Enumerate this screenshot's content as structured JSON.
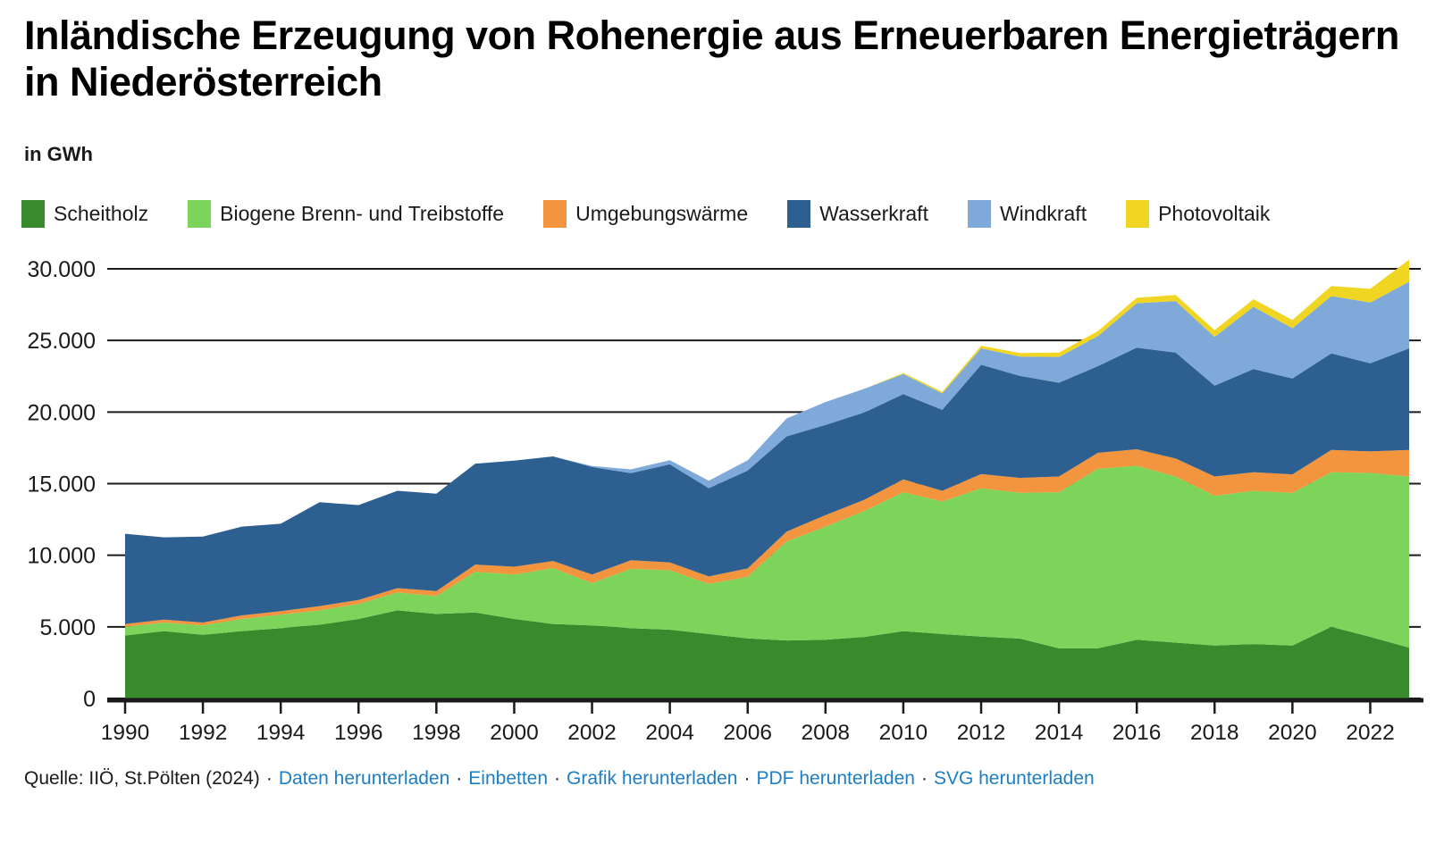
{
  "header": {
    "title": "Inländische Erzeugung von Rohenergie aus Erneuerbaren Energieträgern in Niederösterreich",
    "unit_label": "in GWh"
  },
  "chart_data": {
    "type": "area",
    "stacked": true,
    "title": "Inländische Erzeugung von Rohenergie aus Erneuerbaren Energieträgern in Niederösterreich",
    "ylabel": "in GWh",
    "x": [
      1990,
      1991,
      1992,
      1993,
      1994,
      1995,
      1996,
      1997,
      1998,
      1999,
      2000,
      2001,
      2002,
      2003,
      2004,
      2005,
      2006,
      2007,
      2008,
      2009,
      2010,
      2011,
      2012,
      2013,
      2014,
      2015,
      2016,
      2017,
      2018,
      2019,
      2020,
      2021,
      2022,
      2023
    ],
    "series": [
      {
        "name": "Scheitholz",
        "color": "#378b2d",
        "values": [
          4400,
          4700,
          4450,
          4700,
          4900,
          5150,
          5550,
          6150,
          5900,
          6000,
          5550,
          5200,
          5100,
          4900,
          4800,
          4500,
          4200,
          4050,
          4100,
          4300,
          4700,
          4500,
          4320,
          4180,
          3500,
          3500,
          4100,
          3900,
          3700,
          3800,
          3700,
          5000,
          4300,
          3550
        ]
      },
      {
        "name": "Biogene Brenn- und Treibstoffe",
        "color": "#7dd45a",
        "values": [
          600,
          600,
          650,
          850,
          950,
          1000,
          1050,
          1250,
          1250,
          2850,
          3100,
          3900,
          2950,
          4150,
          4150,
          3500,
          4300,
          6900,
          7900,
          8800,
          9700,
          9250,
          10350,
          10180,
          10900,
          12550,
          12150,
          11600,
          10450,
          10700,
          10650,
          10800,
          11450,
          11950
        ]
      },
      {
        "name": "Umgebungswärme",
        "color": "#f3953f",
        "values": [
          200,
          200,
          200,
          250,
          250,
          300,
          280,
          300,
          350,
          500,
          550,
          500,
          600,
          600,
          550,
          520,
          580,
          700,
          800,
          780,
          900,
          750,
          1000,
          1040,
          1100,
          1100,
          1150,
          1250,
          1350,
          1300,
          1300,
          1550,
          1500,
          1850
        ]
      },
      {
        "name": "Wasserkraft",
        "color": "#2d5f90",
        "values": [
          6300,
          5750,
          6000,
          6200,
          6100,
          7250,
          6620,
          6800,
          6800,
          7050,
          7400,
          7300,
          7510,
          6080,
          6850,
          6160,
          6830,
          6650,
          6300,
          6100,
          5950,
          5650,
          7630,
          7120,
          6550,
          6050,
          7100,
          7400,
          6350,
          7200,
          6700,
          6750,
          6150,
          7100
        ]
      },
      {
        "name": "Windkraft",
        "color": "#7ea9d8",
        "values": [
          0,
          0,
          0,
          0,
          0,
          0,
          0,
          0,
          0,
          0,
          0,
          0,
          70,
          270,
          290,
          520,
          720,
          1250,
          1600,
          1650,
          1400,
          1150,
          1150,
          1350,
          1800,
          2100,
          3100,
          3600,
          3400,
          4350,
          3500,
          4000,
          4250,
          4650
        ]
      },
      {
        "name": "Photovoltaik",
        "color": "#f0d522",
        "values": [
          0,
          0,
          0,
          0,
          0,
          0,
          0,
          0,
          0,
          0,
          0,
          0,
          0,
          0,
          0,
          0,
          0,
          0,
          0,
          0,
          80,
          120,
          180,
          250,
          300,
          350,
          380,
          430,
          470,
          530,
          580,
          700,
          950,
          1550
        ]
      }
    ],
    "ylim": [
      0,
      30000
    ],
    "yticks": [
      0,
      5000,
      10000,
      15000,
      20000,
      25000,
      30000
    ],
    "ytick_labels": [
      "0",
      "5.000",
      "10.000",
      "15.000",
      "20.000",
      "25.000",
      "30.000"
    ],
    "xticks": [
      1990,
      1992,
      1994,
      1996,
      1998,
      2000,
      2002,
      2004,
      2006,
      2008,
      2010,
      2012,
      2014,
      2016,
      2018,
      2020,
      2022
    ],
    "grid": true,
    "legend_position": "top"
  },
  "footer": {
    "source": "Quelle: IIÖ, St.Pölten (2024)",
    "separator": "·",
    "links": [
      "Daten herunterladen",
      "Einbetten",
      "Grafik herunterladen",
      "PDF herunterladen",
      "SVG herunterladen"
    ]
  },
  "colors": {
    "link": "#1d7ec4",
    "axis": "#1a1a1a",
    "background": "#ffffff"
  }
}
